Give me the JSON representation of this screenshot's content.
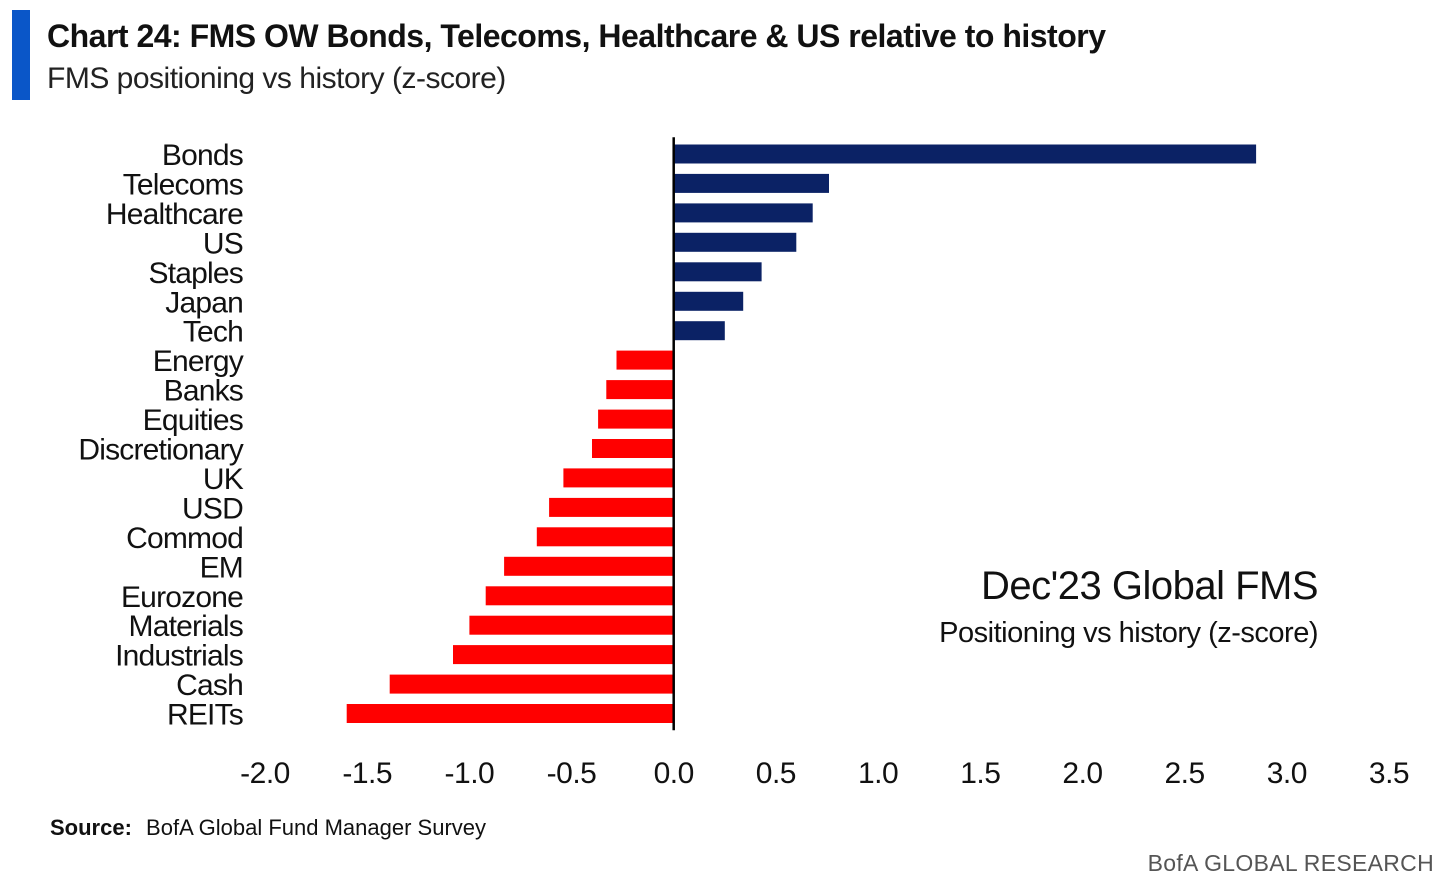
{
  "header": {
    "title": "Chart 24: FMS OW Bonds, Telecoms, Healthcare & US relative to history",
    "subtitle": "FMS positioning vs history (z-score)"
  },
  "annotation": {
    "title": "Dec'23 Global FMS",
    "subtitle": "Positioning vs history (z-score)"
  },
  "footer": {
    "source_label": "Source:",
    "source_text": "BofA Global Fund Manager Survey",
    "brand": "BofA GLOBAL RESEARCH"
  },
  "colors": {
    "positive": "#0b2265",
    "negative": "#ff0000",
    "accent": "#0a56c8",
    "axis": "#000000"
  },
  "chart_data": {
    "type": "bar",
    "orientation": "horizontal",
    "title": "Chart 24: FMS OW Bonds, Telecoms, Healthcare & US relative to history",
    "subtitle": "FMS positioning vs history (z-score)",
    "xlabel": "",
    "ylabel": "",
    "xlim": [
      -2.0,
      3.5
    ],
    "x_ticks": [
      "-2.0",
      "-1.5",
      "-1.0",
      "-0.5",
      "0.0",
      "0.5",
      "1.0",
      "1.5",
      "2.0",
      "2.5",
      "3.0",
      "3.5"
    ],
    "categories": [
      "Bonds",
      "Telecoms",
      "Healthcare",
      "US",
      "Staples",
      "Japan",
      "Tech",
      "Energy",
      "Banks",
      "Equities",
      "Discretionary",
      "UK",
      "USD",
      "Commod",
      "EM",
      "Eurozone",
      "Materials",
      "Industrials",
      "Cash",
      "REITs"
    ],
    "values": [
      2.85,
      0.76,
      0.68,
      0.6,
      0.43,
      0.34,
      0.25,
      -0.28,
      -0.33,
      -0.37,
      -0.4,
      -0.54,
      -0.61,
      -0.67,
      -0.83,
      -0.92,
      -1.0,
      -1.08,
      -1.39,
      -1.6
    ],
    "grid": false,
    "legend": "none"
  }
}
